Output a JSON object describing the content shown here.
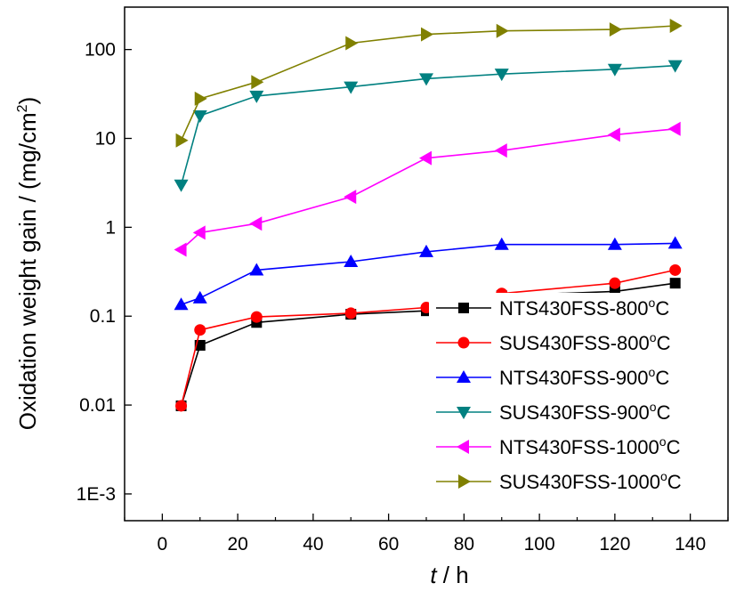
{
  "chart_data": {
    "type": "line",
    "xlabel_var": "t",
    "xlabel_unit": " / h",
    "ylabel": "Oxidation weight gain / (mg/cm",
    "ylabel_sup": "2",
    "ylabel_end": ")",
    "xlim": [
      -10,
      150
    ],
    "ylim": [
      0.0005,
      300
    ],
    "yscale": "log",
    "grid": false,
    "legend_position": "bottom-right",
    "x_ticks": [
      0,
      20,
      40,
      60,
      80,
      100,
      120,
      140
    ],
    "x_tick_labels": [
      "0",
      "20",
      "40",
      "60",
      "80",
      "100",
      "120",
      "140"
    ],
    "y_ticks": [
      0.001,
      0.01,
      0.1,
      1,
      10,
      100
    ],
    "y_tick_labels": [
      "1E-3",
      "0.01",
      "0.1",
      "1",
      "10",
      "100"
    ],
    "series": [
      {
        "name": "NTS430FSS-800",
        "unit_sup": "o",
        "unit_end": "C",
        "color": "#000000",
        "marker": "square",
        "x": [
          5,
          10,
          25,
          50,
          70,
          90,
          120,
          136
        ],
        "y": [
          0.0098,
          0.047,
          0.085,
          0.105,
          0.115,
          0.17,
          0.19,
          0.235
        ]
      },
      {
        "name": "SUS430FSS-800",
        "unit_sup": "o",
        "unit_end": "C",
        "color": "#ff0000",
        "marker": "circle",
        "x": [
          5,
          10,
          25,
          50,
          70,
          90,
          120,
          136
        ],
        "y": [
          0.0098,
          0.07,
          0.098,
          0.108,
          0.125,
          0.18,
          0.235,
          0.33
        ]
      },
      {
        "name": "NTS430FSS-900",
        "unit_sup": "o",
        "unit_end": "C",
        "color": "#0000ff",
        "marker": "triangle-up",
        "x": [
          5,
          10,
          25,
          50,
          70,
          90,
          120,
          136
        ],
        "y": [
          0.135,
          0.16,
          0.33,
          0.41,
          0.53,
          0.64,
          0.64,
          0.66
        ]
      },
      {
        "name": "SUS430FSS-900",
        "unit_sup": "o",
        "unit_end": "C",
        "color": "#008080",
        "marker": "triangle-down",
        "x": [
          5,
          10,
          25,
          50,
          70,
          90,
          120,
          136
        ],
        "y": [
          3.0,
          18.0,
          30.0,
          38.0,
          47.0,
          53.0,
          60.0,
          66.0
        ]
      },
      {
        "name": "NTS430FSS-1000",
        "unit_sup": "o",
        "unit_end": "C",
        "color": "#ff00ff",
        "marker": "triangle-left",
        "x": [
          5,
          10,
          25,
          50,
          70,
          90,
          120,
          136
        ],
        "y": [
          0.56,
          0.87,
          1.1,
          2.2,
          6.0,
          7.3,
          11.0,
          12.8
        ]
      },
      {
        "name": "SUS430FSS-1000",
        "unit_sup": "o",
        "unit_end": "C",
        "color": "#808000",
        "marker": "triangle-right",
        "x": [
          5,
          10,
          25,
          50,
          70,
          90,
          120,
          136
        ],
        "y": [
          9.5,
          28.0,
          43.0,
          118.0,
          148.0,
          162.0,
          168.0,
          185.0
        ]
      }
    ]
  }
}
